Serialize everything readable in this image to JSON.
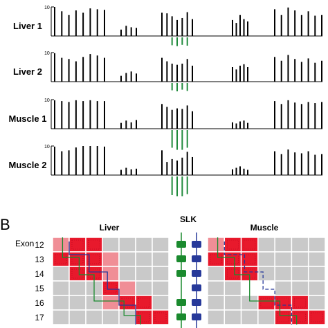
{
  "panel_b_letter": "B",
  "tracks": [
    {
      "label": "Liver 1",
      "ymax_label": "10",
      "groups": [
        {
          "positive": [
            1,
            0.85,
            0.72,
            0.88,
            0.8,
            0.95,
            0.92,
            0.9
          ],
          "negative": []
        },
        {
          "positive": [
            0.22,
            0.35,
            0.3,
            0.28
          ],
          "negative": []
        },
        {
          "positive": [
            0.8,
            0.78,
            0.68,
            0.55,
            0.62,
            0.82,
            0.58
          ],
          "negative": [
            0,
            0,
            0.38,
            0.42,
            0.36,
            0.4,
            0
          ]
        },
        {
          "positive": [
            0.55,
            0.45,
            0.72,
            0.58,
            0.5
          ],
          "negative": []
        },
        {
          "positive": [
            0.92,
            0.72,
            0.98,
            0.88,
            0.72,
            0.85,
            0.7,
            0.72
          ],
          "negative": []
        }
      ]
    },
    {
      "label": "Liver 2",
      "ymax_label": "10",
      "groups": [
        {
          "positive": [
            0.98,
            0.82,
            0.78,
            0.7,
            0.85,
            0.95,
            0.9,
            0.82
          ],
          "negative": []
        },
        {
          "positive": [
            0.2,
            0.3,
            0.35,
            0.28
          ],
          "negative": []
        },
        {
          "positive": [
            0.82,
            0.7,
            0.62,
            0.58,
            0.62,
            0.78,
            0.55
          ],
          "negative": [
            0,
            0,
            0.35,
            0.4,
            0.32,
            0.38,
            0
          ]
        },
        {
          "positive": [
            0.5,
            0.42,
            0.55,
            0.6,
            0.5
          ],
          "negative": []
        },
        {
          "positive": [
            0.85,
            0.72,
            0.92,
            0.78,
            0.68,
            0.8,
            0.65,
            0.72
          ],
          "negative": []
        }
      ]
    },
    {
      "label": "Muscle 1",
      "ymax_label": "10",
      "groups": [
        {
          "positive": [
            0.98,
            0.95,
            0.92,
            0.98,
            0.95,
            0.98,
            0.95,
            0.95
          ],
          "negative": []
        },
        {
          "positive": [
            0.2,
            0.28,
            0.22,
            0.3
          ],
          "negative": []
        },
        {
          "positive": [
            0.85,
            0.75,
            0.65,
            0.7,
            0.68,
            0.8,
            0.6
          ],
          "negative": [
            0,
            0,
            0.85,
            0.95,
            0.95,
            0.85,
            0
          ]
        },
        {
          "positive": [
            0.22,
            0.18,
            0.25,
            0.28,
            0.2
          ],
          "negative": []
        },
        {
          "positive": [
            0.95,
            0.85,
            0.98,
            0.9,
            0.85,
            0.92,
            0.88,
            0.92
          ],
          "negative": []
        }
      ]
    },
    {
      "label": "Muscle 2",
      "ymax_label": "10",
      "groups": [
        {
          "positive": [
            0.98,
            0.82,
            0.85,
            0.95,
            1,
            1,
            1,
            0.98
          ],
          "negative": []
        },
        {
          "positive": [
            0.18,
            0.25,
            0.2,
            0.22
          ],
          "negative": []
        },
        {
          "positive": [
            0.85,
            0.45,
            0.55,
            0.5,
            0.6,
            0.8,
            0.62
          ],
          "negative": [
            0,
            0,
            0.9,
            0.95,
            0.95,
            0.85,
            0
          ]
        },
        {
          "positive": [
            0.2,
            0.25,
            0.3,
            0.22,
            0.18
          ],
          "negative": []
        },
        {
          "positive": [
            0.82,
            0.72,
            0.88,
            0.78,
            0.75,
            0.82,
            0.7,
            0.72
          ],
          "negative": []
        }
      ]
    }
  ],
  "panel_b": {
    "exon_axis_label": "Exon",
    "exons": [
      "12",
      "13",
      "14",
      "15",
      "16",
      "17"
    ],
    "liver_title": "Liver",
    "muscle_title": "Muscle",
    "gene_title": "SLK",
    "liver_matrix": [
      [
        2,
        3,
        3,
        1,
        1,
        1,
        1
      ],
      [
        3,
        3,
        3,
        2,
        1,
        1,
        1
      ],
      [
        1,
        3,
        3,
        2,
        1,
        1,
        1
      ],
      [
        1,
        1,
        1,
        3,
        2,
        1,
        1
      ],
      [
        1,
        1,
        1,
        2,
        3,
        3,
        1
      ],
      [
        1,
        1,
        1,
        1,
        1,
        3,
        3
      ]
    ],
    "muscle_matrix": [
      [
        2,
        3,
        3,
        1,
        1,
        1,
        1
      ],
      [
        3,
        3,
        3,
        1,
        1,
        1,
        1
      ],
      [
        1,
        3,
        3,
        1,
        1,
        1,
        1
      ],
      [
        1,
        1,
        0,
        0,
        1,
        1,
        1
      ],
      [
        1,
        1,
        1,
        3,
        3,
        3,
        1
      ],
      [
        1,
        1,
        1,
        1,
        3,
        3,
        3
      ]
    ],
    "green_exons": [
      true,
      true,
      true,
      false,
      true,
      true
    ],
    "blue_exons": [
      true,
      true,
      true,
      true,
      true,
      true
    ],
    "colors": {
      "track": "#000000",
      "junction": "#1f8a3b",
      "green": "#1a8a2e",
      "blue": "#27399a",
      "cell_levels": [
        "#ffffff",
        "#c9c9c9",
        "#f08e96",
        "#e8192c"
      ]
    }
  }
}
